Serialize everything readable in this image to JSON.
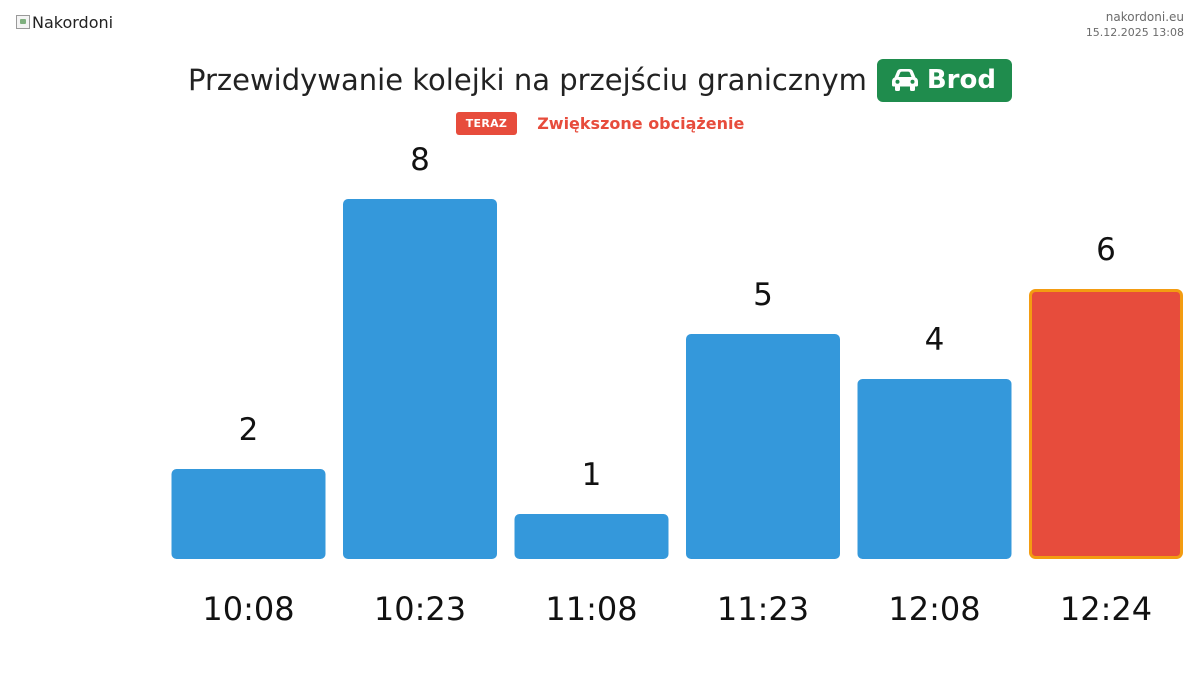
{
  "header": {
    "logo_alt": "Nakordoni",
    "site": "nakordoni.eu",
    "timestamp": "15.12.2025 13:08"
  },
  "title": {
    "text": "Przewidywanie kolejki na przejściu granicznym",
    "crossing_name": "Brod",
    "crossing_icon": "car-icon",
    "badge_color": "#1f8c4d"
  },
  "status": {
    "badge": "TERAZ",
    "text": "Zwiększone obciążenie",
    "color": "#e74c3c"
  },
  "chart_data": {
    "type": "bar",
    "categories": [
      "10:08",
      "10:23",
      "11:08",
      "11:23",
      "12:08",
      "12:24"
    ],
    "values": [
      2,
      8,
      1,
      5,
      4,
      6
    ],
    "highlight_index": 5,
    "ylim": [
      0,
      10
    ],
    "grid": false,
    "colors": {
      "bar": "#3498db",
      "highlight": "#e74c3c",
      "highlight_border": "#f39c12"
    }
  }
}
